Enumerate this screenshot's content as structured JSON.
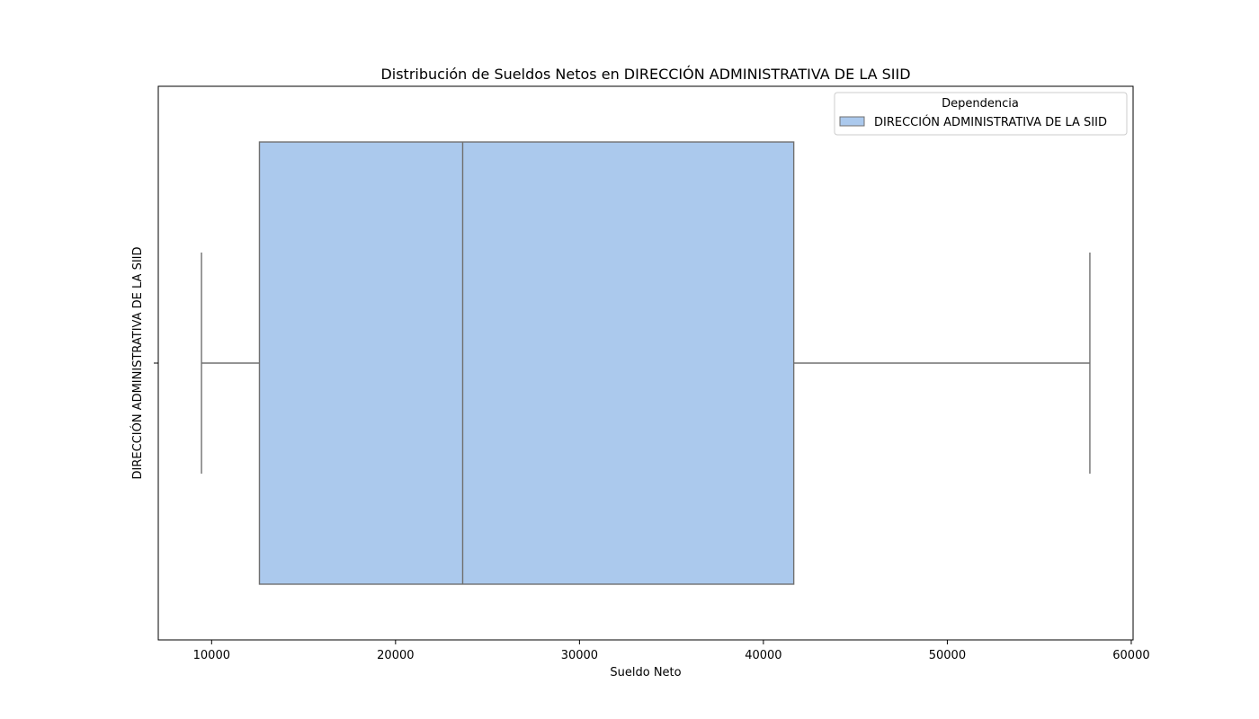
{
  "chart_data": {
    "type": "box",
    "title": "Distribución de Sueldos Netos en DIRECCIÓN ADMINISTRATIVA DE LA SIID",
    "xlabel": "Sueldo Neto",
    "ylabel": "DIRECCIÓN ADMINISTRATIVA DE LA SIID",
    "xlim": [
      7100,
      60100
    ],
    "xticks": [
      10000,
      20000,
      30000,
      40000,
      50000,
      60000
    ],
    "xtick_labels": [
      "10000",
      "20000",
      "30000",
      "40000",
      "50000",
      "60000"
    ],
    "grid": false,
    "legend": {
      "title": "Dependencia",
      "position": "top-right",
      "entries": [
        "DIRECCIÓN ADMINISTRATIVA DE LA SIID"
      ]
    },
    "series": [
      {
        "name": "DIRECCIÓN ADMINISTRATIVA DE LA SIID",
        "whisker_low": 9450,
        "q1": 12600,
        "median": 23650,
        "q3": 41650,
        "whisker_high": 57750,
        "color": "#abc9ed",
        "edge_color": "#707070"
      }
    ]
  }
}
